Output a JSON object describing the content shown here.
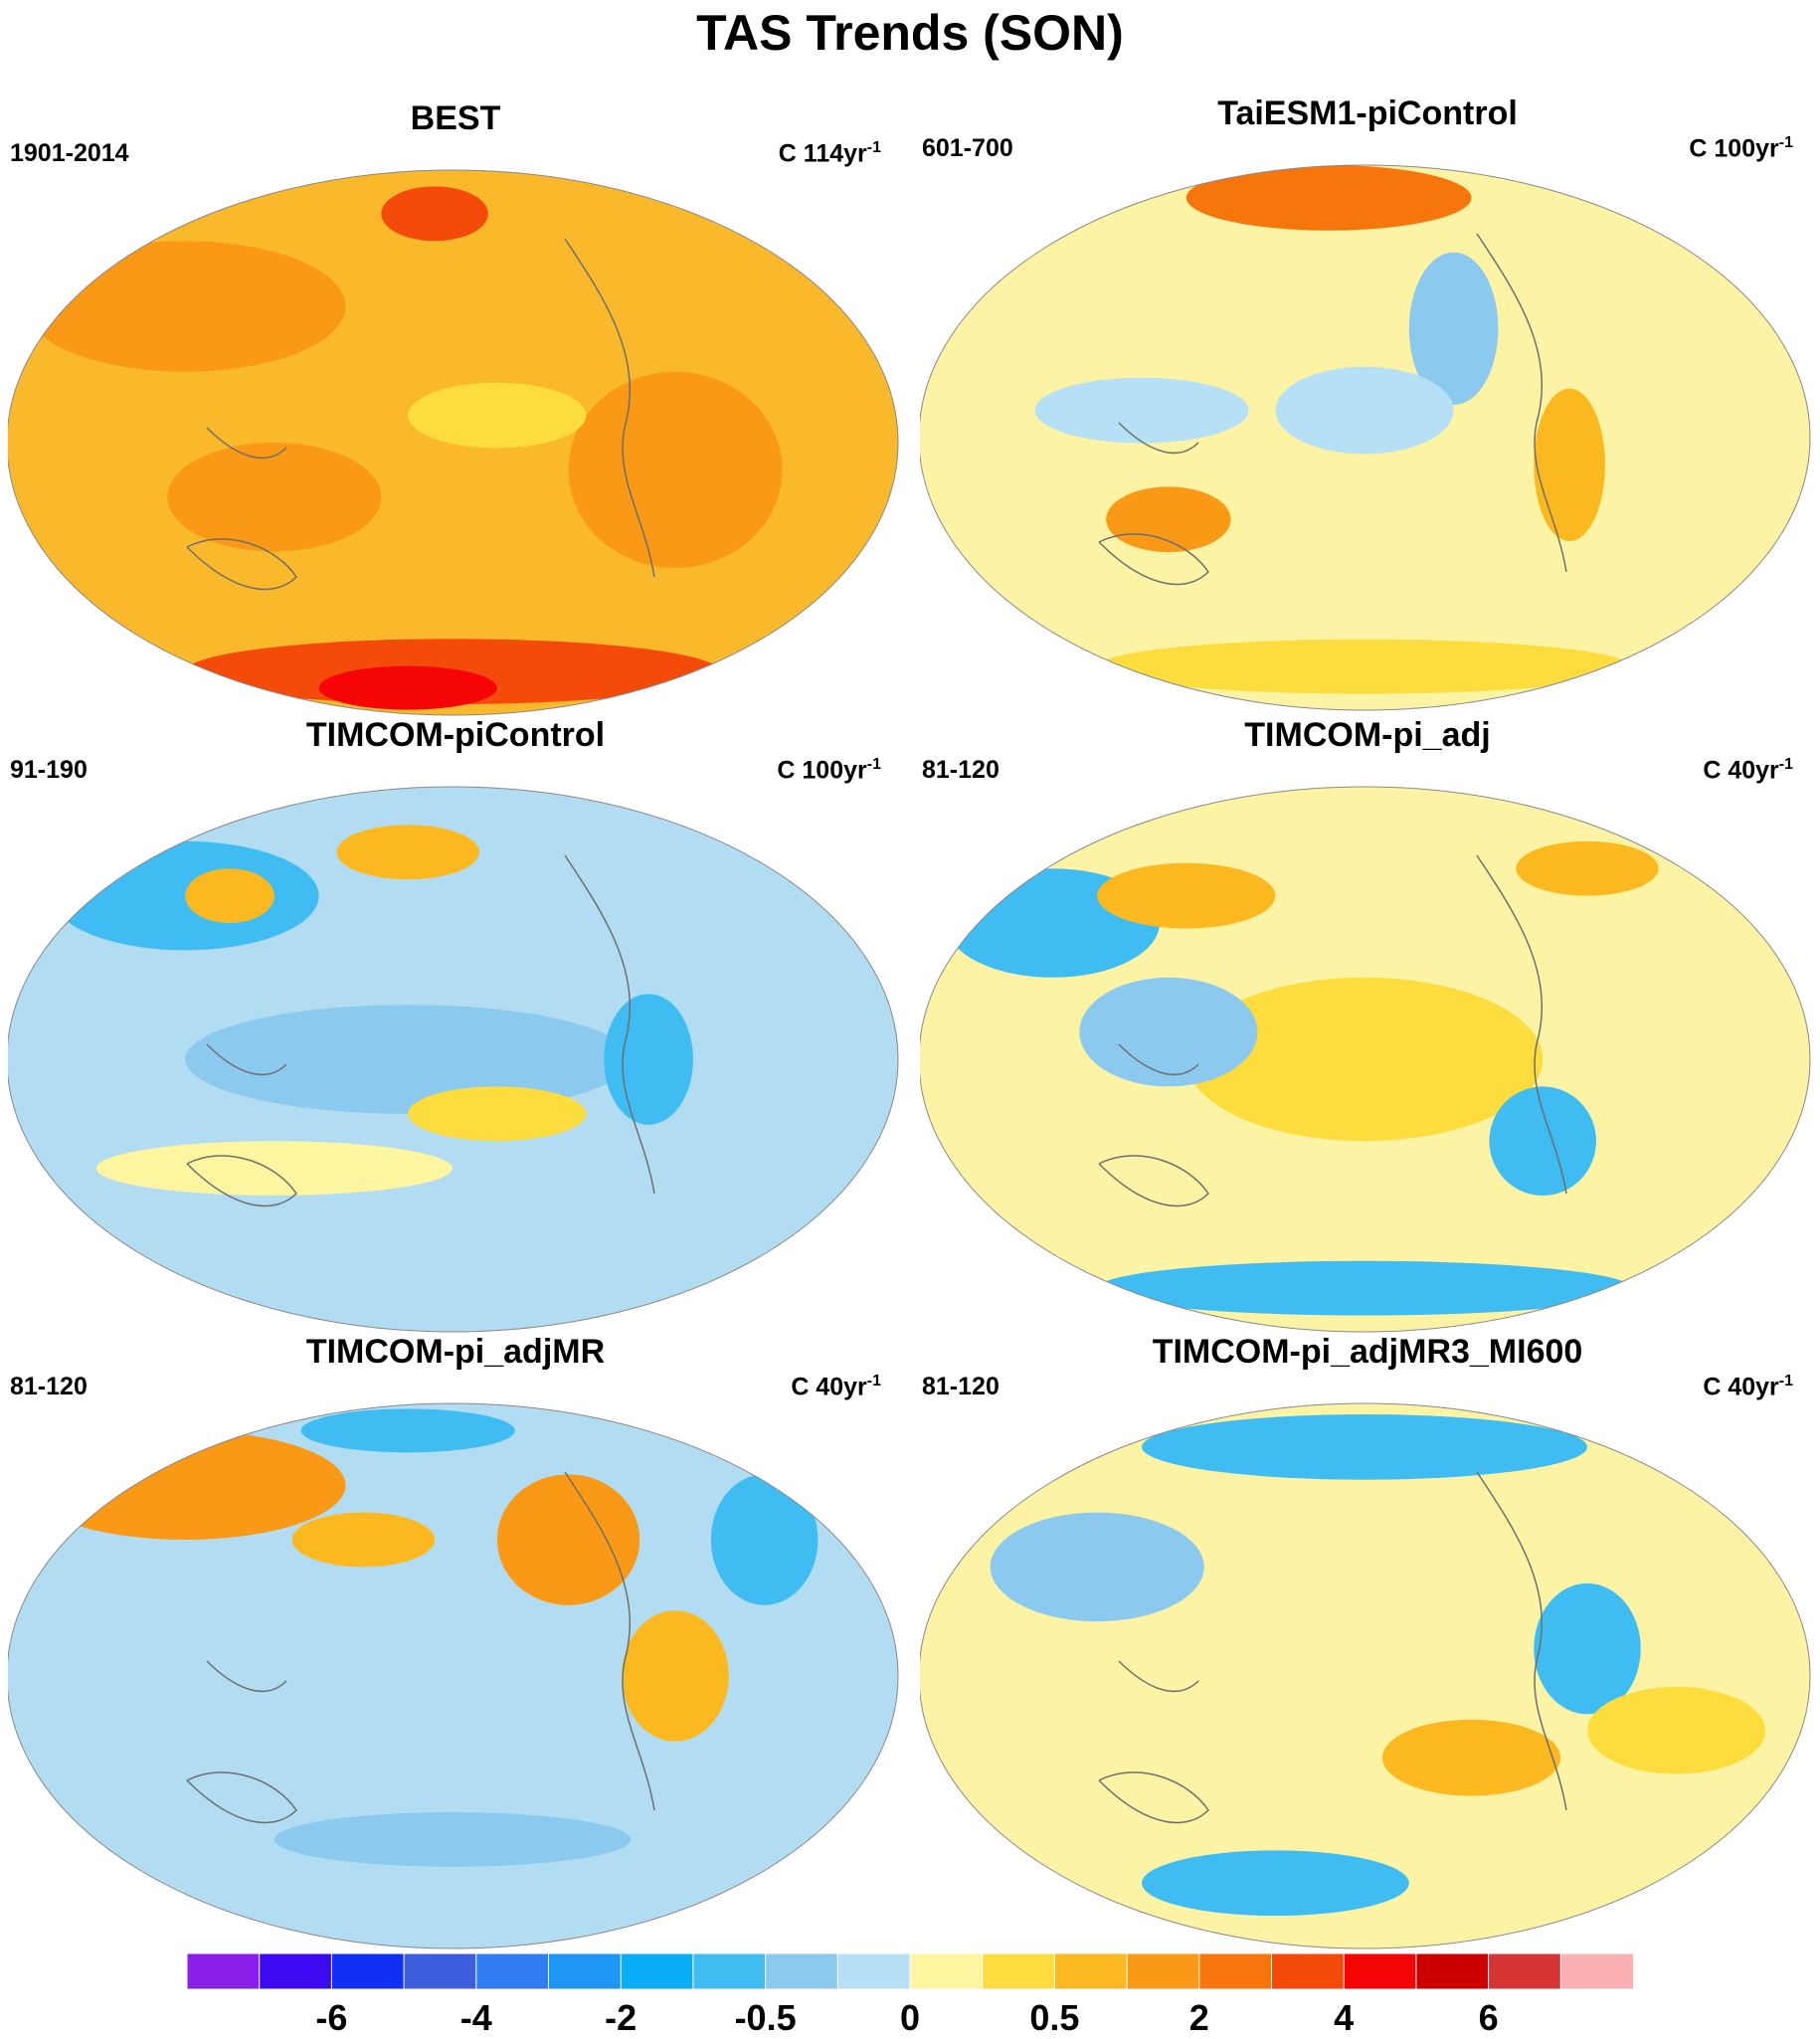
{
  "figure": {
    "title": "TAS Trends (SON)"
  },
  "units_label": {
    "base": "C",
    "exponent": "-1"
  },
  "panels": [
    {
      "title": "BEST",
      "period": "1901-2014",
      "interval": "114yr",
      "fill": "#f9b92b",
      "pattern": "best"
    },
    {
      "title": "TaiESM1-piControl",
      "period": "601-700",
      "interval": "100yr",
      "fill": "#fdf3a4",
      "pattern": "taiesm"
    },
    {
      "title": "TIMCOM-piControl",
      "period": "91-190",
      "interval": "100yr",
      "fill": "#b2dcf1",
      "pattern": "picontrol"
    },
    {
      "title": "TIMCOM-pi_adj",
      "period": "81-120",
      "interval": "40yr",
      "fill": "#fdf3a4",
      "pattern": "adj"
    },
    {
      "title": "TIMCOM-pi_adjMR",
      "period": "81-120",
      "interval": "40yr",
      "fill": "#b2dcf1",
      "pattern": "adjmr"
    },
    {
      "title": "TIMCOM-pi_adjMR3_MI600",
      "period": "81-120",
      "interval": "40yr",
      "fill": "#fdf3a4",
      "pattern": "adjmr3"
    }
  ],
  "colorbar": {
    "colors": [
      "#8b1ee8",
      "#3c0af0",
      "#1030f5",
      "#3d5fdd",
      "#2f7df0",
      "#1e96f5",
      "#0aaef6",
      "#3fbdf3",
      "#8cc9ee",
      "#b6e0f5",
      "#fdf5a0",
      "#fddc3e",
      "#fbb91f",
      "#f99916",
      "#f7760c",
      "#f44a0a",
      "#f50505",
      "#cc0000",
      "#d73434",
      "#fbb1b1"
    ],
    "labels": [
      "-6",
      "-4",
      "-2",
      "-0.5",
      "0",
      "0.5",
      "2",
      "4",
      "6"
    ],
    "label_boundaries": [
      2,
      4,
      6,
      8,
      10,
      12,
      14,
      16,
      18
    ]
  }
}
